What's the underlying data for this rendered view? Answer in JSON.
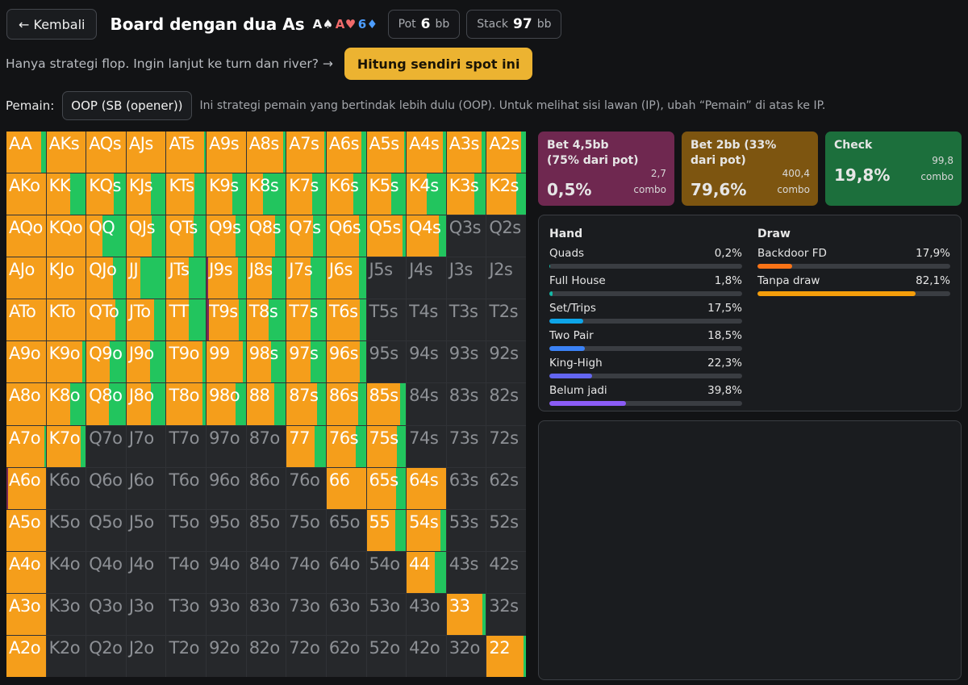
{
  "header": {
    "back_label": "← Kembali",
    "title": "Board dengan dua As",
    "board": [
      {
        "text": "A♠",
        "color": "black"
      },
      {
        "text": "A♥",
        "color": "red"
      },
      {
        "text": "6♦",
        "color": "blue"
      }
    ],
    "pot": {
      "label": "Pot",
      "value": "6",
      "unit": "bb"
    },
    "stack": {
      "label": "Stack",
      "value": "97",
      "unit": "bb"
    }
  },
  "info": {
    "text": "Hanya strategi flop. Ingin lanjut ke turn dan river? →",
    "button": "Hitung sendiri spot ini"
  },
  "player": {
    "label": "Pemain:",
    "selected": "OOP (SB (opener))",
    "description": "Ini strategi pemain yang bertindak lebih dulu (OOP). Untuk melihat sisi lawan (IP), ubah “Pemain” di atas ke IP."
  },
  "colors": {
    "bet_large": "#7a2a53",
    "bet_small": "#f59e1b",
    "check": "#22c55e",
    "inactive": "#26282b"
  },
  "actions": [
    {
      "name": "Bet 4,5bb (75% dari pot)",
      "percent": "0,5%",
      "combos": "2,7",
      "combo_label": "combo",
      "color": "#6f2850"
    },
    {
      "name": "Bet 2bb (33% dari pot)",
      "percent": "79,6%",
      "combos": "400,4",
      "combo_label": "combo",
      "color": "#7d5510"
    },
    {
      "name": "Check",
      "percent": "19,8%",
      "combos": "99,8",
      "combo_label": "combo",
      "color": "#1c6f3c"
    }
  ],
  "hand_stats": {
    "title": "Hand",
    "rows": [
      {
        "name": "Quads",
        "value": "0,2%",
        "pct": 0.2,
        "color": "#14b8a6"
      },
      {
        "name": "Full House",
        "value": "1,8%",
        "pct": 1.8,
        "color": "#14b8a6"
      },
      {
        "name": "Set/Trips",
        "value": "17,5%",
        "pct": 17.5,
        "color": "#0ea5e9"
      },
      {
        "name": "Two Pair",
        "value": "18,5%",
        "pct": 18.5,
        "color": "#3b82f6"
      },
      {
        "name": "King-High",
        "value": "22,3%",
        "pct": 22.3,
        "color": "#6366f1"
      },
      {
        "name": "Belum jadi",
        "value": "39,8%",
        "pct": 39.8,
        "color": "#8b5cf6"
      }
    ]
  },
  "draw_stats": {
    "title": "Draw",
    "rows": [
      {
        "name": "Backdoor FD",
        "value": "17,9%",
        "pct": 17.9,
        "color": "#f97316"
      },
      {
        "name": "Tanpa draw",
        "value": "82,1%",
        "pct": 82.1,
        "color": "#f59e0b"
      }
    ]
  },
  "matrix": [
    [
      {
        "h": "AA",
        "a": [
          0,
          88,
          12
        ]
      },
      {
        "h": "AKs",
        "a": [
          0,
          100,
          0
        ]
      },
      {
        "h": "AQs",
        "a": [
          0,
          100,
          0
        ]
      },
      {
        "h": "AJs",
        "a": [
          0,
          100,
          0
        ]
      },
      {
        "h": "ATs",
        "a": [
          0,
          96,
          4
        ]
      },
      {
        "h": "A9s",
        "a": [
          0,
          100,
          0
        ]
      },
      {
        "h": "A8s",
        "a": [
          0,
          94,
          6
        ]
      },
      {
        "h": "A7s",
        "a": [
          0,
          96,
          4
        ]
      },
      {
        "h": "A6s",
        "a": [
          0,
          88,
          12
        ]
      },
      {
        "h": "A5s",
        "a": [
          0,
          96,
          4
        ]
      },
      {
        "h": "A4s",
        "a": [
          0,
          92,
          8
        ]
      },
      {
        "h": "A3s",
        "a": [
          0,
          88,
          12
        ]
      },
      {
        "h": "A2s",
        "a": [
          0,
          88,
          12
        ]
      }
    ],
    [
      {
        "h": "AKo",
        "a": [
          0,
          100,
          0
        ]
      },
      {
        "h": "KK",
        "a": [
          0,
          60,
          40
        ]
      },
      {
        "h": "KQs",
        "a": [
          0,
          70,
          30
        ]
      },
      {
        "h": "KJs",
        "a": [
          0,
          62,
          38
        ]
      },
      {
        "h": "KTs",
        "a": [
          0,
          72,
          28
        ]
      },
      {
        "h": "K9s",
        "a": [
          0,
          66,
          34
        ]
      },
      {
        "h": "K8s",
        "a": [
          0,
          42,
          58
        ]
      },
      {
        "h": "K7s",
        "a": [
          0,
          66,
          34
        ]
      },
      {
        "h": "K6s",
        "a": [
          0,
          68,
          32
        ]
      },
      {
        "h": "K5s",
        "a": [
          0,
          62,
          38
        ]
      },
      {
        "h": "K4s",
        "a": [
          0,
          52,
          48
        ]
      },
      {
        "h": "K3s",
        "a": [
          0,
          70,
          30
        ]
      },
      {
        "h": "K2s",
        "a": [
          0,
          76,
          24
        ]
      }
    ],
    [
      {
        "h": "AQo",
        "a": [
          0,
          100,
          0
        ]
      },
      {
        "h": "KQo",
        "a": [
          0,
          100,
          0
        ]
      },
      {
        "h": "QQ",
        "a": [
          0,
          40,
          60
        ]
      },
      {
        "h": "QJs",
        "a": [
          0,
          64,
          36
        ]
      },
      {
        "h": "QTs",
        "a": [
          0,
          68,
          32
        ]
      },
      {
        "h": "Q9s",
        "a": [
          0,
          74,
          26
        ]
      },
      {
        "h": "Q8s",
        "a": [
          0,
          72,
          28
        ]
      },
      {
        "h": "Q7s",
        "a": [
          0,
          68,
          32
        ]
      },
      {
        "h": "Q6s",
        "a": [
          0,
          82,
          18
        ]
      },
      {
        "h": "Q5s",
        "a": [
          0,
          92,
          8
        ]
      },
      {
        "h": "Q4s",
        "a": [
          0,
          82,
          18
        ]
      },
      {
        "h": "Q3s",
        "a": null
      },
      {
        "h": "Q2s",
        "a": null
      }
    ],
    [
      {
        "h": "AJo",
        "a": [
          0,
          100,
          0
        ]
      },
      {
        "h": "KJo",
        "a": [
          0,
          100,
          0
        ]
      },
      {
        "h": "QJo",
        "a": [
          0,
          68,
          32
        ]
      },
      {
        "h": "JJ",
        "a": [
          0,
          36,
          64
        ]
      },
      {
        "h": "JTs",
        "a": [
          0,
          56,
          44
        ]
      },
      {
        "h": "J9s",
        "a": [
          4,
          76,
          20
        ]
      },
      {
        "h": "J8s",
        "a": [
          0,
          64,
          36
        ]
      },
      {
        "h": "J7s",
        "a": [
          0,
          62,
          38
        ]
      },
      {
        "h": "J6s",
        "a": [
          0,
          82,
          18
        ]
      },
      {
        "h": "J5s",
        "a": null
      },
      {
        "h": "J4s",
        "a": null
      },
      {
        "h": "J3s",
        "a": null
      },
      {
        "h": "J2s",
        "a": null
      }
    ],
    [
      {
        "h": "ATo",
        "a": [
          0,
          100,
          0
        ]
      },
      {
        "h": "KTo",
        "a": [
          0,
          100,
          0
        ]
      },
      {
        "h": "QTo",
        "a": [
          0,
          74,
          26
        ]
      },
      {
        "h": "JTo",
        "a": [
          0,
          70,
          30
        ]
      },
      {
        "h": "TT",
        "a": [
          0,
          56,
          44
        ]
      },
      {
        "h": "T9s",
        "a": [
          6,
          76,
          18
        ]
      },
      {
        "h": "T8s",
        "a": [
          0,
          56,
          44
        ]
      },
      {
        "h": "T7s",
        "a": [
          0,
          62,
          38
        ]
      },
      {
        "h": "T6s",
        "a": [
          0,
          84,
          16
        ]
      },
      {
        "h": "T5s",
        "a": null
      },
      {
        "h": "T4s",
        "a": null
      },
      {
        "h": "T3s",
        "a": null
      },
      {
        "h": "T2s",
        "a": null
      }
    ],
    [
      {
        "h": "A9o",
        "a": [
          0,
          100,
          0
        ]
      },
      {
        "h": "K9o",
        "a": [
          0,
          92,
          8
        ]
      },
      {
        "h": "Q9o",
        "a": [
          0,
          60,
          40
        ]
      },
      {
        "h": "J9o",
        "a": [
          0,
          60,
          40
        ]
      },
      {
        "h": "T9o",
        "a": [
          0,
          92,
          8
        ]
      },
      {
        "h": "99",
        "a": [
          0,
          92,
          8
        ]
      },
      {
        "h": "98s",
        "a": [
          0,
          62,
          38
        ]
      },
      {
        "h": "97s",
        "a": [
          0,
          62,
          38
        ]
      },
      {
        "h": "96s",
        "a": [
          0,
          84,
          16
        ]
      },
      {
        "h": "95s",
        "a": null
      },
      {
        "h": "94s",
        "a": null
      },
      {
        "h": "93s",
        "a": null
      },
      {
        "h": "92s",
        "a": null
      }
    ],
    [
      {
        "h": "A8o",
        "a": [
          0,
          100,
          0
        ]
      },
      {
        "h": "K8o",
        "a": [
          0,
          60,
          40
        ]
      },
      {
        "h": "Q8o",
        "a": [
          0,
          58,
          42
        ]
      },
      {
        "h": "J8o",
        "a": [
          0,
          62,
          38
        ]
      },
      {
        "h": "T8o",
        "a": [
          0,
          92,
          8
        ]
      },
      {
        "h": "98o",
        "a": [
          0,
          74,
          26
        ]
      },
      {
        "h": "88",
        "a": [
          0,
          70,
          30
        ]
      },
      {
        "h": "87s",
        "a": [
          0,
          78,
          22
        ]
      },
      {
        "h": "86s",
        "a": [
          0,
          80,
          20
        ]
      },
      {
        "h": "85s",
        "a": [
          0,
          86,
          14
        ]
      },
      {
        "h": "84s",
        "a": null
      },
      {
        "h": "83s",
        "a": null
      },
      {
        "h": "82s",
        "a": null
      }
    ],
    [
      {
        "h": "A7o",
        "a": [
          0,
          96,
          4
        ]
      },
      {
        "h": "K7o",
        "a": [
          0,
          88,
          12
        ]
      },
      {
        "h": "Q7o",
        "a": null
      },
      {
        "h": "J7o",
        "a": null
      },
      {
        "h": "T7o",
        "a": null
      },
      {
        "h": "97o",
        "a": null
      },
      {
        "h": "87o",
        "a": null
      },
      {
        "h": "77",
        "a": [
          0,
          72,
          28
        ]
      },
      {
        "h": "76s",
        "a": [
          0,
          74,
          26
        ]
      },
      {
        "h": "75s",
        "a": [
          0,
          78,
          22
        ]
      },
      {
        "h": "74s",
        "a": null
      },
      {
        "h": "73s",
        "a": null
      },
      {
        "h": "72s",
        "a": null
      }
    ],
    [
      {
        "h": "A6o",
        "a": [
          4,
          96,
          0
        ]
      },
      {
        "h": "K6o",
        "a": null
      },
      {
        "h": "Q6o",
        "a": null
      },
      {
        "h": "J6o",
        "a": null
      },
      {
        "h": "T6o",
        "a": null
      },
      {
        "h": "96o",
        "a": null
      },
      {
        "h": "86o",
        "a": null
      },
      {
        "h": "76o",
        "a": null
      },
      {
        "h": "66",
        "a": [
          0,
          100,
          0
        ]
      },
      {
        "h": "65s",
        "a": [
          0,
          74,
          26
        ]
      },
      {
        "h": "64s",
        "a": [
          0,
          100,
          0
        ]
      },
      {
        "h": "63s",
        "a": null
      },
      {
        "h": "62s",
        "a": null
      }
    ],
    [
      {
        "h": "A5o",
        "a": [
          0,
          100,
          0
        ]
      },
      {
        "h": "K5o",
        "a": null
      },
      {
        "h": "Q5o",
        "a": null
      },
      {
        "h": "J5o",
        "a": null
      },
      {
        "h": "T5o",
        "a": null
      },
      {
        "h": "95o",
        "a": null
      },
      {
        "h": "85o",
        "a": null
      },
      {
        "h": "75o",
        "a": null
      },
      {
        "h": "65o",
        "a": null
      },
      {
        "h": "55",
        "a": [
          0,
          72,
          28
        ]
      },
      {
        "h": "54s",
        "a": [
          0,
          86,
          14
        ]
      },
      {
        "h": "53s",
        "a": null
      },
      {
        "h": "52s",
        "a": null
      }
    ],
    [
      {
        "h": "A4o",
        "a": [
          0,
          100,
          0
        ]
      },
      {
        "h": "K4o",
        "a": null
      },
      {
        "h": "Q4o",
        "a": null
      },
      {
        "h": "J4o",
        "a": null
      },
      {
        "h": "T4o",
        "a": null
      },
      {
        "h": "94o",
        "a": null
      },
      {
        "h": "84o",
        "a": null
      },
      {
        "h": "74o",
        "a": null
      },
      {
        "h": "64o",
        "a": null
      },
      {
        "h": "54o",
        "a": null
      },
      {
        "h": "44",
        "a": [
          0,
          72,
          28
        ]
      },
      {
        "h": "43s",
        "a": null
      },
      {
        "h": "42s",
        "a": null
      }
    ],
    [
      {
        "h": "A3o",
        "a": [
          0,
          100,
          0
        ]
      },
      {
        "h": "K3o",
        "a": null
      },
      {
        "h": "Q3o",
        "a": null
      },
      {
        "h": "J3o",
        "a": null
      },
      {
        "h": "T3o",
        "a": null
      },
      {
        "h": "93o",
        "a": null
      },
      {
        "h": "83o",
        "a": null
      },
      {
        "h": "73o",
        "a": null
      },
      {
        "h": "63o",
        "a": null
      },
      {
        "h": "53o",
        "a": null
      },
      {
        "h": "43o",
        "a": null
      },
      {
        "h": "33",
        "a": [
          0,
          90,
          10
        ]
      },
      {
        "h": "32s",
        "a": null
      }
    ],
    [
      {
        "h": "A2o",
        "a": [
          0,
          100,
          0
        ]
      },
      {
        "h": "K2o",
        "a": null
      },
      {
        "h": "Q2o",
        "a": null
      },
      {
        "h": "J2o",
        "a": null
      },
      {
        "h": "T2o",
        "a": null
      },
      {
        "h": "92o",
        "a": null
      },
      {
        "h": "82o",
        "a": null
      },
      {
        "h": "72o",
        "a": null
      },
      {
        "h": "62o",
        "a": null
      },
      {
        "h": "52o",
        "a": null
      },
      {
        "h": "42o",
        "a": null
      },
      {
        "h": "32o",
        "a": null
      },
      {
        "h": "22",
        "a": [
          0,
          94,
          6
        ]
      }
    ]
  ]
}
